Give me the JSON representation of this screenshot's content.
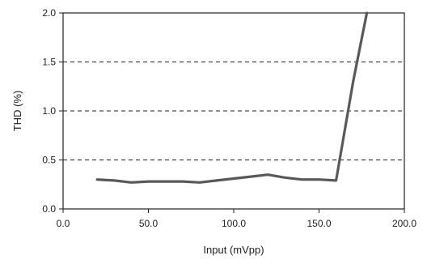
{
  "chart_data": {
    "type": "line",
    "title": "",
    "xlabel": "Input (mVpp)",
    "ylabel": "THD (%)",
    "xlim": [
      0,
      200
    ],
    "ylim": [
      0,
      2
    ],
    "xticks": [
      "0.0",
      "50.0",
      "100.0",
      "150.0",
      "200.0"
    ],
    "xtick_values": [
      0,
      50,
      100,
      150,
      200
    ],
    "yticks": [
      "0.0",
      "0.5",
      "1.0",
      "1.5",
      "2.0"
    ],
    "ytick_values": [
      0,
      0.5,
      1,
      1.5,
      2
    ],
    "grid": "horizontal-dashed",
    "legend": "none",
    "series": [
      {
        "color": "#595959",
        "x": [
          20,
          30,
          40,
          50,
          60,
          70,
          80,
          90,
          100,
          110,
          120,
          130,
          140,
          150,
          160,
          170,
          178
        ],
        "y": [
          0.3,
          0.29,
          0.27,
          0.28,
          0.28,
          0.28,
          0.27,
          0.29,
          0.31,
          0.33,
          0.35,
          0.32,
          0.3,
          0.3,
          0.29,
          1.3,
          2.0
        ]
      }
    ]
  }
}
